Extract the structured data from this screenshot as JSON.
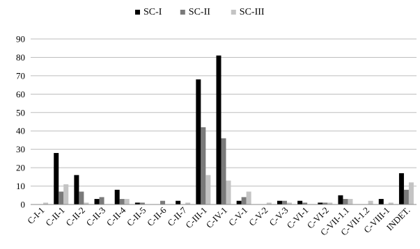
{
  "chart_data": {
    "type": "bar",
    "categories": [
      "C-I-1",
      "C-II-1",
      "C-II-2",
      "C-II-3",
      "C-II-4",
      "C-II-5",
      "C-II-6",
      "C-II-7",
      "C-III-1",
      "C-IV-1",
      "C-V-1",
      "C-V-2",
      "C-V-3",
      "C-VI-1",
      "C-VI-2",
      "C-VII-1.1",
      "C-VII-1.2",
      "C-VIII-1",
      "INDET."
    ],
    "series": [
      {
        "name": "SC-I",
        "color": "#000000",
        "values": [
          0,
          28,
          16,
          3,
          8,
          1,
          0,
          2,
          68,
          81,
          2,
          0,
          2,
          2,
          1,
          5,
          0,
          3,
          17
        ]
      },
      {
        "name": "SC-II",
        "color": "#7a7a7a",
        "values": [
          0,
          7,
          7,
          4,
          3,
          1,
          2,
          0,
          42,
          36,
          4,
          0,
          2,
          1,
          1,
          3,
          0,
          0,
          8
        ]
      },
      {
        "name": "SC-III",
        "color": "#c4c4c4",
        "values": [
          1,
          11,
          1,
          0,
          3,
          0,
          0,
          1,
          16,
          13,
          7,
          1,
          1,
          0,
          1,
          3,
          2,
          1,
          12
        ]
      }
    ],
    "title": "",
    "xlabel": "",
    "ylabel": "",
    "ylim": [
      0,
      90
    ],
    "yticks": [
      0,
      10,
      20,
      30,
      40,
      50,
      60,
      70,
      80,
      90
    ],
    "grid": true,
    "legend": "top-center"
  }
}
